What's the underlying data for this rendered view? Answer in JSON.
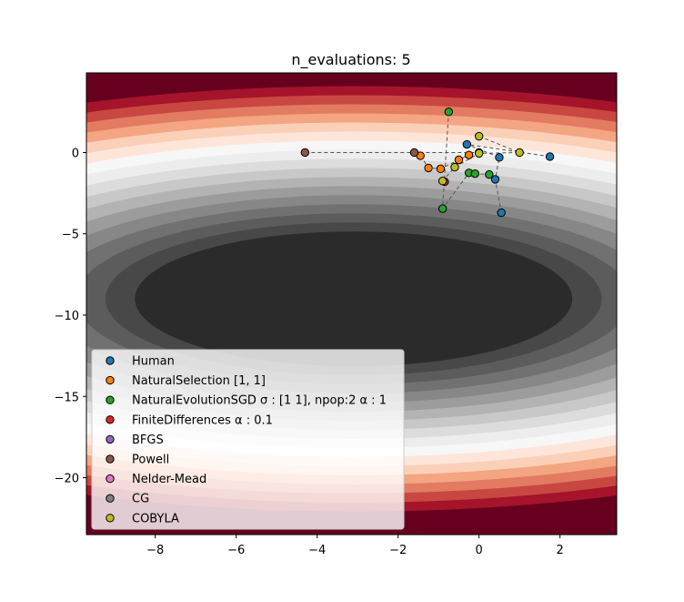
{
  "chart_data": {
    "type": "scatter",
    "title": "n_evaluations: 5",
    "xlabel": "",
    "ylabel": "",
    "xlim": [
      -9.7,
      3.4
    ],
    "ylim": [
      -23.5,
      4.9
    ],
    "xticks": [
      -8,
      -6,
      -4,
      -2,
      0,
      2
    ],
    "yticks": [
      0,
      -5,
      -10,
      -15,
      -20
    ],
    "xtick_labels": [
      "−8",
      "−6",
      "−4",
      "−2",
      "0",
      "2"
    ],
    "ytick_labels": [
      "0",
      "−5",
      "−10",
      "−15",
      "−20"
    ],
    "grid": false,
    "legend_position": "lower-left",
    "background": {
      "type": "contour",
      "colormap": "RdGy_r",
      "minimum": [
        -3.1,
        -9.0
      ],
      "description_levels": "filled elliptical contours centered near the minimum"
    },
    "series": [
      {
        "name": "Human",
        "color": "#1f77b4",
        "points": [
          [
            1.75,
            -0.25
          ],
          [
            -0.3,
            0.5
          ],
          [
            0.5,
            -0.3
          ],
          [
            0.4,
            -1.65
          ],
          [
            0.55,
            -3.7
          ]
        ]
      },
      {
        "name": "NaturalSelection [1, 1]",
        "color": "#ff7f0e",
        "points": [
          [
            -1.45,
            -0.2
          ],
          [
            -1.25,
            -0.95
          ],
          [
            -0.95,
            -1.0
          ],
          [
            -0.5,
            -0.45
          ],
          [
            -0.25,
            -0.15
          ]
        ]
      },
      {
        "name": "NaturalEvolutionSGD $\\sigma: [1\\ 1]$, npop:2 $\\alpha: 1$",
        "label_display": "NaturalEvolutionSGD σ : [1 1], npop:2 α : 1",
        "color": "#2ca02c",
        "points": [
          [
            -0.75,
            2.5
          ],
          [
            -0.9,
            -3.45
          ],
          [
            -0.25,
            -1.25
          ],
          [
            -0.1,
            -1.3
          ],
          [
            0.25,
            -1.35
          ]
        ]
      },
      {
        "name": "FiniteDifferences $\\alpha: 0.1$",
        "label_display": "FiniteDifferences α : 0.1",
        "color": "#d62728",
        "points": [
          [
            -0.85,
            -1.8
          ]
        ]
      },
      {
        "name": "BFGS",
        "color": "#9467bd",
        "points": []
      },
      {
        "name": "Powell",
        "color": "#8c564b",
        "points": [
          [
            -4.3,
            0.0
          ],
          [
            -1.6,
            0.0
          ],
          [
            0.0,
            0.0
          ]
        ]
      },
      {
        "name": "Nelder-Mead",
        "color": "#e377c2",
        "points": []
      },
      {
        "name": "CG",
        "color": "#7f7f7f",
        "points": []
      },
      {
        "name": "COBYLA",
        "color": "#bcbd22",
        "points": [
          [
            0.0,
            1.0
          ],
          [
            1.0,
            0.0
          ],
          [
            0.0,
            -0.05
          ],
          [
            -0.6,
            -0.9
          ],
          [
            -0.9,
            -1.75
          ]
        ]
      }
    ]
  }
}
